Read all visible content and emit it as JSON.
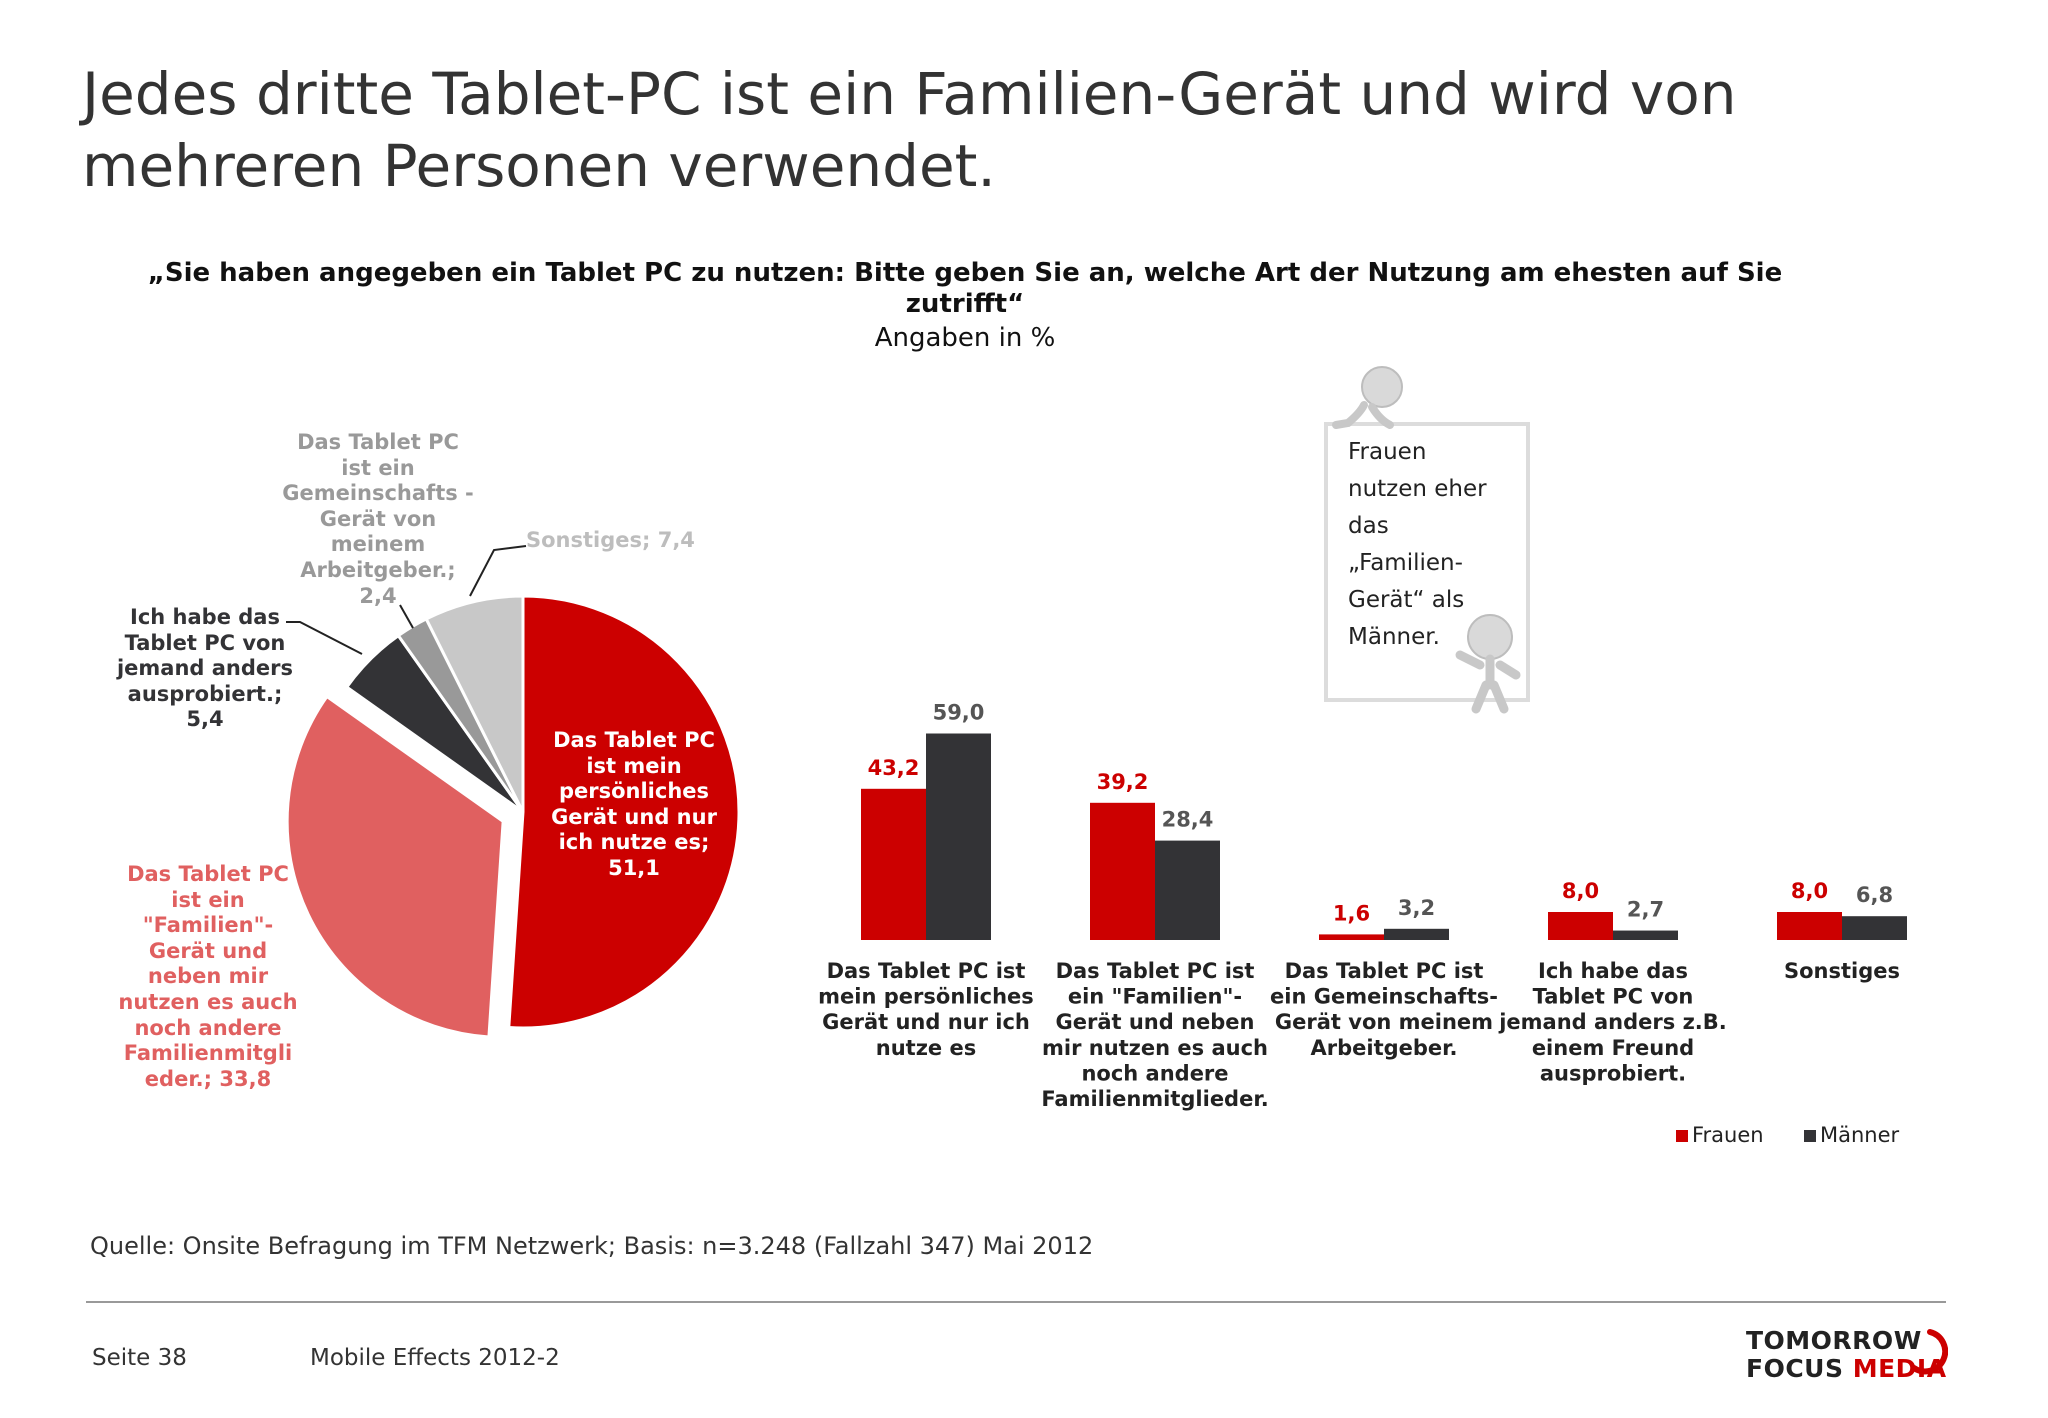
{
  "title": "Jedes dritte Tablet-PC ist ein Familien-Gerät und wird von mehreren Personen verwendet.",
  "question": "„Sie haben angegeben ein Tablet PC zu nutzen: Bitte geben Sie an, welche Art der Nutzung am ehesten auf Sie zutrifft“",
  "unit": "Angaben in %",
  "note": "Frauen\nnutzen eher\ndas\n„Familien-\nGerät“  als\nMänner.",
  "source": "Quelle: Onsite Befragung im TFM Netzwerk; Basis: n=3.248 (Fallzahl 347) Mai 2012",
  "footer": {
    "page": "Seite 38",
    "doc": "Mobile Effects 2012-2"
  },
  "logo": {
    "line1": "TOMORROW",
    "line2a": "FOCUS ",
    "line2b": "MEDIA"
  },
  "colors": {
    "red": "#cc0000",
    "light_red": "#e06060",
    "dark": "#333336",
    "gray": "#999999",
    "light_gray": "#c8c8c8"
  },
  "chart_data": [
    {
      "type": "pie",
      "slices": [
        {
          "label": "Das Tablet PC ist mein persönliches Gerät und nur ich nutze es; 51,1",
          "value": 51.1,
          "color": "#cc0000"
        },
        {
          "label": "Das Tablet PC ist ein \"Familien\"-Gerät und neben mir nutzen es auch noch andere Familienmitglieder.; 33,8",
          "value": 33.8,
          "color": "#e06060",
          "exploded": true
        },
        {
          "label": "Ich habe das Tablet PC von jemand anders ausprobiert.; 5,4",
          "value": 5.4,
          "color": "#333336"
        },
        {
          "label": "Das Tablet PC ist ein Gemeinschafts-Gerät von meinem Arbeitgeber.; 2,4",
          "value": 2.4,
          "color": "#999999"
        },
        {
          "label": "Sonstiges; 7,4",
          "value": 7.4,
          "color": "#c8c8c8"
        }
      ],
      "labels": {
        "s0": "Das Tablet PC ist mein persönliches Gerät und nur ich nutze es; 51,1",
        "s1": "Das Tablet PC ist ein \"Familien\"- Gerät und neben mir nutzen es auch noch andere Familienmitgli eder.; 33,8",
        "s2": "Ich habe das Tablet PC von jemand anders ausprobiert.; 5,4",
        "s3": "Das Tablet PC ist ein Gemeinschafts -Gerät von meinem Arbeitgeber.; 2,4",
        "s4": "Sonstiges; 7,4"
      }
    },
    {
      "type": "bar",
      "categories": [
        "Das Tablet PC ist mein persönliches Gerät und nur ich nutze es",
        "Das Tablet PC ist ein \"Familien\"- Gerät und neben mir nutzen es auch noch andere Familienmitglieder.",
        "Das Tablet PC ist ein Gemeinschafts- Gerät von meinem Arbeitgeber.",
        "Ich habe das Tablet PC von jemand anders z.B. einem Freund ausprobiert.",
        "Sonstiges"
      ],
      "series": [
        {
          "name": "Frauen",
          "values": [
            43.2,
            39.2,
            1.6,
            8.0,
            8.0
          ],
          "value_labels": [
            "43,2",
            "39,2",
            "1,6",
            "8,0",
            "8,0"
          ],
          "color": "#cc0000"
        },
        {
          "name": "Männer",
          "values": [
            59.0,
            28.4,
            3.2,
            2.7,
            6.8
          ],
          "value_labels": [
            "59,0",
            "28,4",
            "3,2",
            "2,7",
            "6,8"
          ],
          "color": "#333336"
        }
      ],
      "legend": "bottom-right"
    }
  ]
}
